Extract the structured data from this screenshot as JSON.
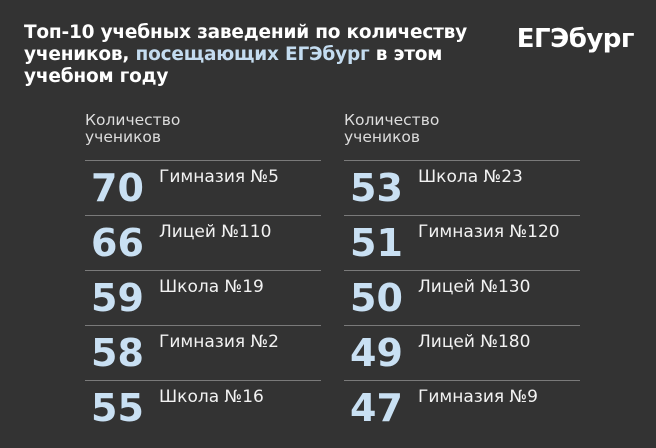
{
  "title": {
    "line1": "Топ-10 учебных заведений по количеству",
    "line2_start": "учеников, ",
    "line2_highlight": "посещающих ЕГЭбург",
    "line2_end": " в этом",
    "line3": "учебном году"
  },
  "logo": "ЕГЭбург",
  "columns": [
    {
      "header_line1": "Количество",
      "header_line2": "учеников",
      "rows": [
        {
          "count": "70",
          "name": "Гимназия №5"
        },
        {
          "count": "66",
          "name": "Лицей №110"
        },
        {
          "count": "59",
          "name": "Школа №19"
        },
        {
          "count": "58",
          "name": "Гимназия №2"
        },
        {
          "count": "55",
          "name": "Школа №16"
        }
      ]
    },
    {
      "header_line1": "Количество",
      "header_line2": "учеников",
      "rows": [
        {
          "count": "53",
          "name": "Школа №23"
        },
        {
          "count": "51",
          "name": "Гимназия №120"
        },
        {
          "count": "50",
          "name": "Лицей №130"
        },
        {
          "count": "49",
          "name": "Лицей №180"
        },
        {
          "count": "47",
          "name": "Гимназия №9"
        }
      ]
    }
  ],
  "colors": {
    "background": "#333333",
    "accent": "#c9e0f3",
    "text": "#ffffff",
    "divider": "#7a7a7a"
  }
}
